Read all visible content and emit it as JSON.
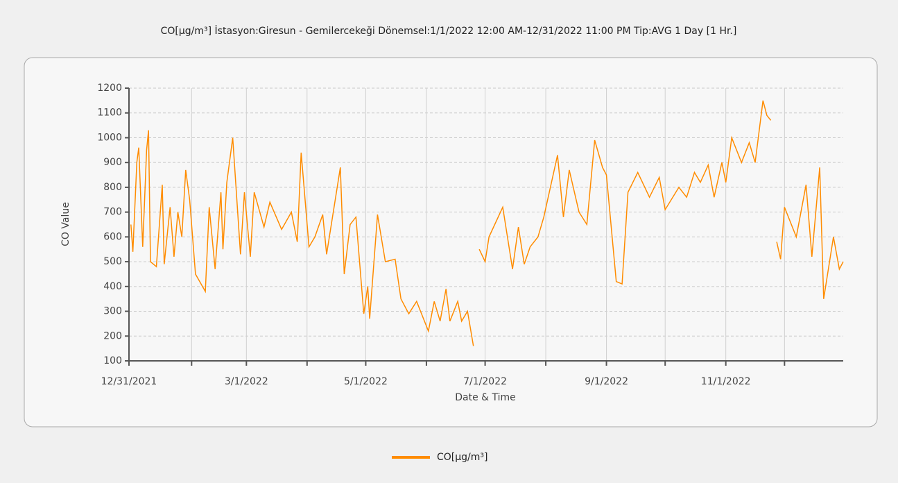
{
  "chart_data": {
    "type": "line",
    "title": "CO[µg/m³] İstasyon:Giresun - Gemilercekeği  Dönemsel:1/1/2022 12:00 AM-12/31/2022 11:00 PM  Tip:AVG 1 Day [1 Hr.]",
    "x_label": "Date & Time",
    "y_label": "CO Value",
    "x": [
      "1/1/2022",
      "1/2/2022",
      "1/4/2022",
      "1/5/2022",
      "1/7/2022",
      "1/9/2022",
      "1/10/2022",
      "1/11/2022",
      "1/14/2022",
      "1/17/2022",
      "1/18/2022",
      "1/21/2022",
      "1/23/2022",
      "1/25/2022",
      "1/27/2022",
      "1/29/2022",
      "1/31/2022",
      "2/3/2022",
      "2/8/2022",
      "2/10/2022",
      "2/13/2022",
      "2/16/2022",
      "2/17/2022",
      "2/19/2022",
      "2/22/2022",
      "2/26/2022",
      "2/28/2022",
      "3/3/2022",
      "3/5/2022",
      "3/10/2022",
      "3/13/2022",
      "3/19/2022",
      "3/24/2022",
      "3/27/2022",
      "3/29/2022",
      "4/2/2022",
      "4/5/2022",
      "4/9/2022",
      "4/11/2022",
      "4/18/2022",
      "4/20/2022",
      "4/23/2022",
      "4/26/2022",
      "4/30/2022",
      "5/2/2022",
      "5/3/2022",
      "5/7/2022",
      "5/11/2022",
      "5/16/2022",
      "5/19/2022",
      "5/23/2022",
      "5/27/2022",
      "6/2/2022",
      "6/5/2022",
      "6/8/2022",
      "6/11/2022",
      "6/13/2022",
      "6/17/2022",
      "6/19/2022",
      "6/22/2022",
      "6/25/2022",
      "6/27/2022",
      "6/28/2022",
      "7/1/2022",
      "7/3/2022",
      "7/10/2022",
      "7/15/2022",
      "7/18/2022",
      "7/21/2022",
      "7/24/2022",
      "7/28/2022",
      "7/31/2022",
      "8/7/2022",
      "8/10/2022",
      "8/13/2022",
      "8/18/2022",
      "8/22/2022",
      "8/26/2022",
      "8/30/2022",
      "9/1/2022",
      "9/6/2022",
      "9/9/2022",
      "9/12/2022",
      "9/17/2022",
      "9/23/2022",
      "9/28/2022",
      "10/1/2022",
      "10/8/2022",
      "10/12/2022",
      "10/16/2022",
      "10/19/2022",
      "10/23/2022",
      "10/26/2022",
      "10/30/2022",
      "11/1/2022",
      "11/4/2022",
      "11/9/2022",
      "11/13/2022",
      "11/16/2022",
      "11/20/2022",
      "11/22/2022",
      "11/24/2022",
      "11/26/2022",
      "11/27/2022",
      "11/29/2022",
      "12/1/2022",
      "12/7/2022",
      "12/12/2022",
      "12/15/2022",
      "12/19/2022",
      "12/21/2022",
      "12/26/2022",
      "12/29/2022",
      "12/31/2022"
    ],
    "series": [
      {
        "name": "CO[µg/m³]",
        "color": "#ff8c00",
        "values": [
          650,
          540,
          900,
          960,
          560,
          950,
          1030,
          500,
          480,
          810,
          490,
          720,
          520,
          700,
          600,
          870,
          750,
          450,
          380,
          720,
          470,
          780,
          550,
          820,
          1000,
          530,
          780,
          520,
          780,
          640,
          740,
          630,
          700,
          580,
          940,
          560,
          600,
          690,
          530,
          880,
          450,
          650,
          680,
          290,
          400,
          270,
          690,
          500,
          510,
          350,
          290,
          340,
          220,
          340,
          260,
          390,
          260,
          340,
          260,
          300,
          160,
          null,
          550,
          500,
          600,
          720,
          470,
          640,
          490,
          560,
          600,
          680,
          930,
          680,
          870,
          700,
          650,
          990,
          880,
          850,
          420,
          410,
          780,
          860,
          760,
          840,
          710,
          800,
          760,
          860,
          820,
          890,
          760,
          900,
          820,
          1000,
          900,
          980,
          900,
          1150,
          1090,
          1070,
          null,
          580,
          510,
          720,
          600,
          810,
          520,
          880,
          350,
          600,
          470,
          500
        ]
      }
    ],
    "xlim": [
      "12/31/2021",
      "12/31/2022"
    ],
    "xticks": [
      "12/31/2021",
      "3/1/2022",
      "5/1/2022",
      "7/1/2022",
      "9/1/2022",
      "11/1/2022"
    ],
    "x_minor_ticks": [
      "2/1/2022",
      "4/1/2022",
      "6/1/2022",
      "8/1/2022",
      "10/1/2022",
      "12/1/2022"
    ],
    "ylim": [
      100,
      1200
    ],
    "yticks": [
      100,
      200,
      300,
      400,
      500,
      600,
      700,
      800,
      900,
      1000,
      1100,
      1200
    ],
    "grid": true,
    "legend": "bottom"
  }
}
